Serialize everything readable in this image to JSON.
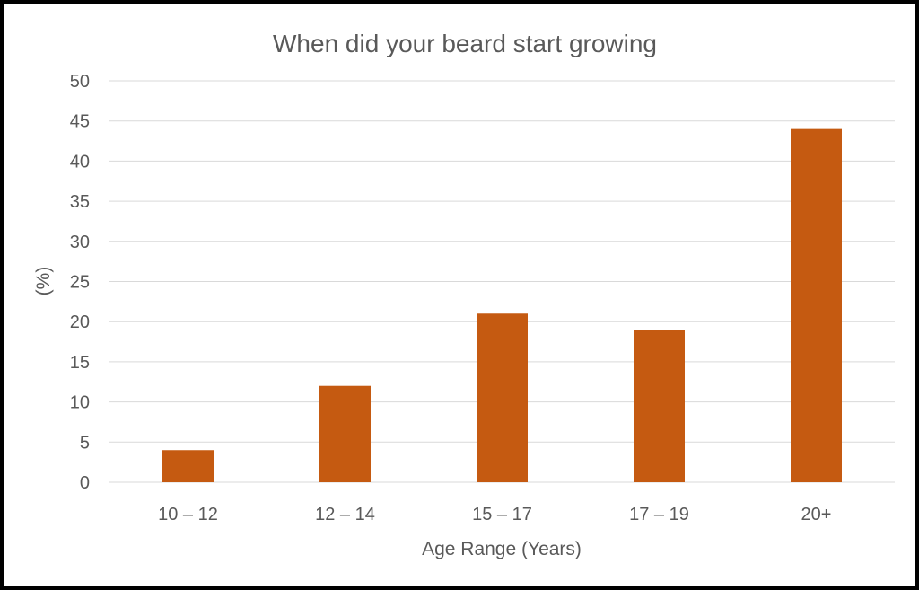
{
  "chart_data": {
    "type": "bar",
    "title": "When did your beard start growing",
    "xlabel": "Age Range (Years)",
    "ylabel": "(%)",
    "categories": [
      "10 – 12",
      "12 – 14",
      "15 – 17",
      "17 – 19",
      "20+"
    ],
    "values": [
      4,
      12,
      21,
      19,
      44
    ],
    "ylim": [
      0,
      50
    ],
    "yticks": [
      "0",
      "5",
      "10",
      "15",
      "20",
      "25",
      "30",
      "35",
      "40",
      "45",
      "50"
    ],
    "grid": true,
    "legend": "none",
    "bar_color": "#c55a11",
    "grid_color": "#d9d9d9"
  }
}
